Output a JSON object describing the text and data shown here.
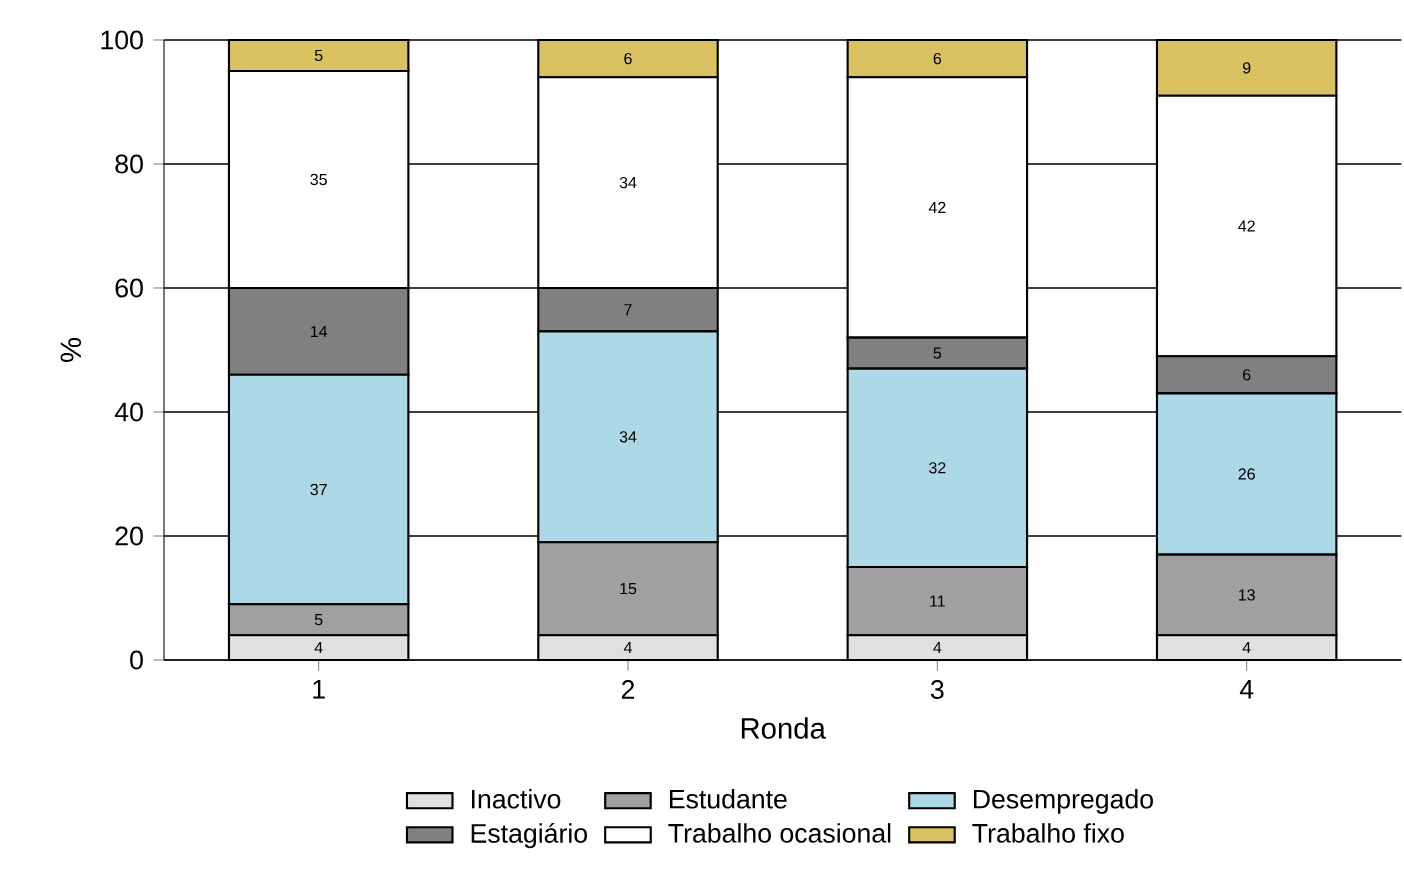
{
  "chart_data": {
    "type": "bar",
    "stacked": true,
    "xlabel": "Ronda",
    "ylabel": "%",
    "categories": [
      "1",
      "2",
      "3",
      "4"
    ],
    "ylim": [
      0,
      100
    ],
    "yticks": [
      0,
      20,
      40,
      60,
      80,
      100
    ],
    "grid": "y",
    "legend": "bottom",
    "data_labels": true,
    "series": [
      {
        "name": "Inactivo",
        "color": "#e0e0e0",
        "values": [
          4,
          4,
          4,
          4
        ]
      },
      {
        "name": "Estudante",
        "color": "#a0a0a0",
        "values": [
          5,
          15,
          11,
          13
        ]
      },
      {
        "name": "Desempregado",
        "color": "#add8e6",
        "values": [
          37,
          34,
          32,
          26
        ]
      },
      {
        "name": "Estagiário",
        "color": "#808080",
        "values": [
          14,
          7,
          5,
          6
        ]
      },
      {
        "name": "Trabalho ocasional",
        "color": "#ffffff",
        "values": [
          35,
          34,
          42,
          42
        ]
      },
      {
        "name": "Trabalho fixo",
        "color": "#d9c060",
        "values": [
          5,
          6,
          6,
          9
        ]
      }
    ]
  }
}
